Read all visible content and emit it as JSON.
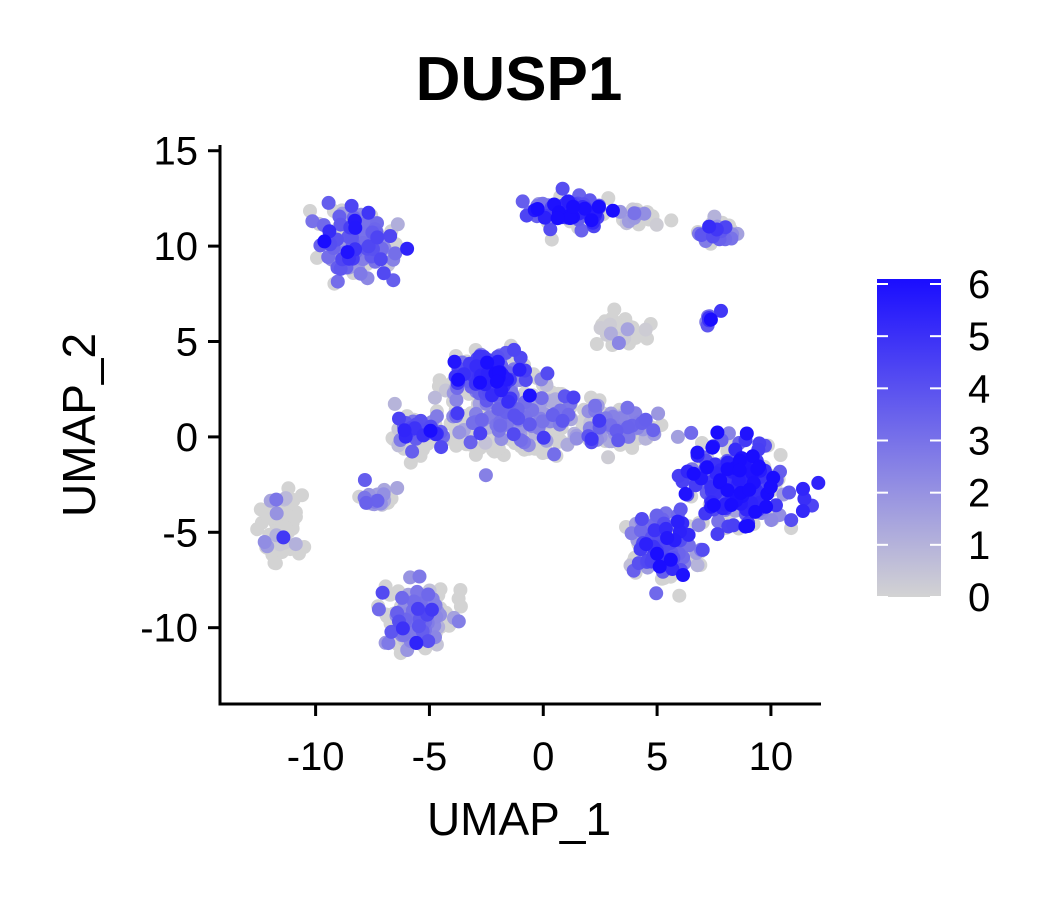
{
  "chart_data": {
    "type": "scatter",
    "title": "DUSP1",
    "xlabel": "UMAP_1",
    "ylabel": "UMAP_2",
    "xlim": [
      -14.2,
      12.2
    ],
    "ylim": [
      -14,
      15.3
    ],
    "xticks": [
      -10,
      -5,
      0,
      5,
      10
    ],
    "xtick_labels": [
      "-10",
      "-5",
      "0",
      "5",
      "10"
    ],
    "yticks": [
      -10,
      -5,
      0,
      5,
      10,
      15
    ],
    "ytick_labels": [
      "-10",
      "-5",
      "0",
      "5",
      "10",
      "15"
    ],
    "grid": false,
    "legend_position": "right",
    "colorbar": {
      "min": 0,
      "max": 6,
      "ticks": [
        0,
        1,
        2,
        3,
        4,
        5,
        6
      ],
      "tick_labels": [
        "0",
        "1",
        "2",
        "3",
        "4",
        "5",
        "6"
      ],
      "low_color": "#d3d3d3",
      "high_color": "#1a0dff"
    },
    "clusters": [
      {
        "center": [
          -8.2,
          10.1
        ],
        "spread": [
          1.6,
          1.7
        ],
        "n": 160,
        "mean_expr": 3.2,
        "zero_frac": 0.35
      },
      {
        "center": [
          1.2,
          11.7
        ],
        "spread": [
          1.6,
          0.8
        ],
        "n": 90,
        "mean_expr": 4.5,
        "zero_frac": 0.15
      },
      {
        "center": [
          4.2,
          11.5
        ],
        "spread": [
          1.2,
          0.4
        ],
        "n": 30,
        "mean_expr": 1.0,
        "zero_frac": 0.7
      },
      {
        "center": [
          7.8,
          10.8
        ],
        "spread": [
          0.9,
          0.6
        ],
        "n": 35,
        "mean_expr": 3.0,
        "zero_frac": 0.3
      },
      {
        "center": [
          3.3,
          5.6
        ],
        "spread": [
          0.9,
          0.8
        ],
        "n": 45,
        "mean_expr": 0.6,
        "zero_frac": 0.8
      },
      {
        "center": [
          7.2,
          6.2
        ],
        "spread": [
          0.6,
          0.4
        ],
        "n": 8,
        "mean_expr": 4.0,
        "zero_frac": 0.0
      },
      {
        "center": [
          -2.3,
          3.2
        ],
        "spread": [
          1.6,
          1.3
        ],
        "n": 160,
        "mean_expr": 4.0,
        "zero_frac": 0.3
      },
      {
        "center": [
          -1.2,
          1.0
        ],
        "spread": [
          3.2,
          1.6
        ],
        "n": 330,
        "mean_expr": 2.0,
        "zero_frac": 0.55
      },
      {
        "center": [
          3.2,
          0.5
        ],
        "spread": [
          2.0,
          1.0
        ],
        "n": 110,
        "mean_expr": 2.2,
        "zero_frac": 0.4
      },
      {
        "center": [
          -5.5,
          0.0
        ],
        "spread": [
          1.2,
          0.9
        ],
        "n": 60,
        "mean_expr": 3.5,
        "zero_frac": 0.4
      },
      {
        "center": [
          -7.3,
          -3.2
        ],
        "spread": [
          0.8,
          0.6
        ],
        "n": 25,
        "mean_expr": 1.5,
        "zero_frac": 0.5
      },
      {
        "center": [
          -11.6,
          -4.7
        ],
        "spread": [
          0.8,
          1.6
        ],
        "n": 80,
        "mean_expr": 1.0,
        "zero_frac": 0.7
      },
      {
        "center": [
          -5.5,
          -9.5
        ],
        "spread": [
          1.5,
          1.7
        ],
        "n": 150,
        "mean_expr": 2.5,
        "zero_frac": 0.45
      },
      {
        "center": [
          8.5,
          -2.5
        ],
        "spread": [
          2.0,
          2.2
        ],
        "n": 260,
        "mean_expr": 4.5,
        "zero_frac": 0.2
      },
      {
        "center": [
          5.2,
          -5.7
        ],
        "spread": [
          1.4,
          1.7
        ],
        "n": 170,
        "mean_expr": 3.5,
        "zero_frac": 0.35
      }
    ]
  }
}
